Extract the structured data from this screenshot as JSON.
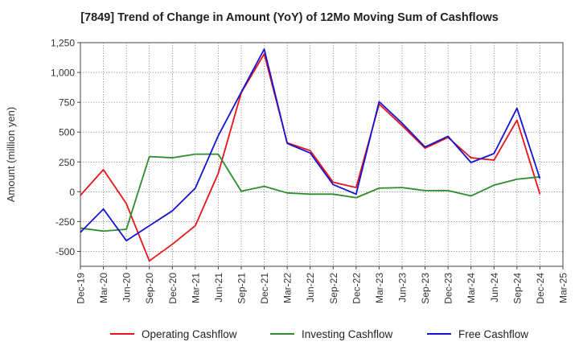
{
  "chart_data": {
    "type": "line",
    "title": "[7849]  Trend of Change in Amount (YoY) of 12Mo Moving Sum of Cashflows",
    "xlabel": "",
    "ylabel": "Amount (million yen)",
    "ylim": [
      -625,
      1250
    ],
    "yticks": [
      -500,
      -250,
      0,
      250,
      500,
      750,
      1000,
      1250
    ],
    "ytick_labels": [
      "-500",
      "-250",
      "0",
      "250",
      "500",
      "750",
      "1,000",
      "1,250"
    ],
    "categories": [
      "Dec-19",
      "Mar-20",
      "Jun-20",
      "Sep-20",
      "Dec-20",
      "Mar-21",
      "Jun-21",
      "Sep-21",
      "Dec-21",
      "Mar-22",
      "Jun-22",
      "Sep-22",
      "Dec-22",
      "Mar-23",
      "Jun-23",
      "Sep-23",
      "Dec-23",
      "Mar-24",
      "Jun-24",
      "Sep-24",
      "Dec-24",
      "Mar-25"
    ],
    "grid": true,
    "legend_position": "bottom",
    "series": [
      {
        "name": "Operating Cashflow",
        "color": "#e8141a",
        "values": [
          -30,
          185,
          -100,
          -580,
          -440,
          -285,
          155,
          830,
          1155,
          410,
          345,
          80,
          35,
          735,
          555,
          365,
          455,
          285,
          265,
          600,
          -20,
          null
        ]
      },
      {
        "name": "Investing Cashflow",
        "color": "#2e8b2e",
        "values": [
          -305,
          -330,
          -315,
          295,
          285,
          315,
          315,
          5,
          45,
          -10,
          -20,
          -20,
          -50,
          30,
          35,
          10,
          10,
          -35,
          55,
          105,
          125,
          null
        ]
      },
      {
        "name": "Free Cashflow",
        "color": "#1414d2",
        "values": [
          -340,
          -145,
          -410,
          -285,
          -160,
          30,
          470,
          835,
          1195,
          405,
          325,
          60,
          -20,
          755,
          575,
          375,
          465,
          245,
          320,
          700,
          110,
          null
        ]
      }
    ]
  }
}
